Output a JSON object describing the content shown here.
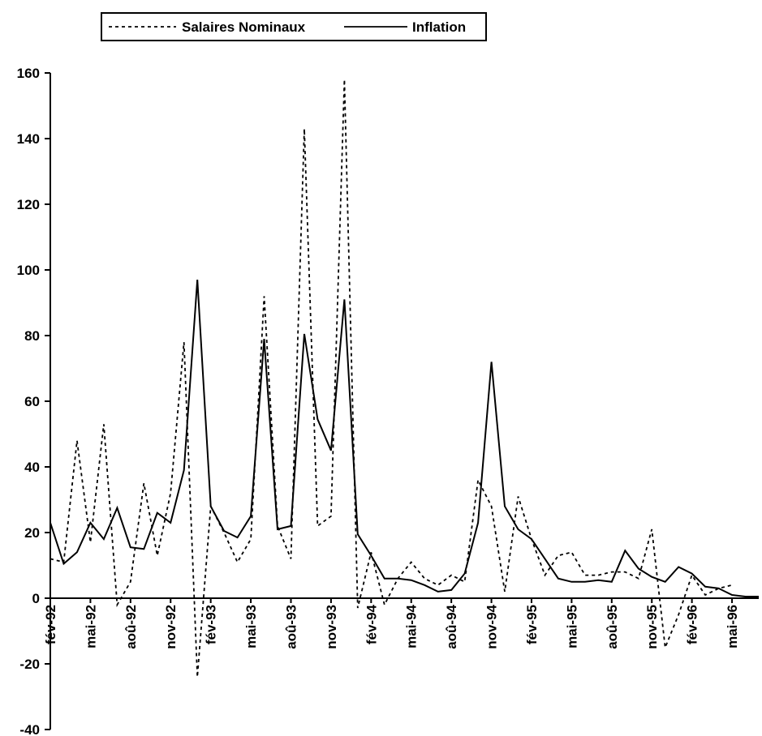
{
  "chart_data": {
    "type": "line",
    "title": "",
    "xlabel": "",
    "ylabel": "",
    "ylim": [
      -40,
      160
    ],
    "y_ticks": [
      -40,
      -20,
      0,
      20,
      40,
      60,
      80,
      100,
      120,
      140,
      160
    ],
    "grid": false,
    "legend_position": "top",
    "x_tick_labels": [
      "fév-92",
      "mai-92",
      "aoû-92",
      "nov-92",
      "fév-93",
      "mai-93",
      "aoû-93",
      "nov-93",
      "fév-94",
      "mai-94",
      "aoû-94",
      "nov-94",
      "fév-95",
      "mai-95",
      "aoû-95",
      "nov-95",
      "fév-96",
      "mai-96"
    ],
    "x_tick_step": 3,
    "series": [
      {
        "name": "Salaires Nominaux",
        "style": "dotted",
        "color": "#000000",
        "values": [
          12,
          11,
          48,
          17,
          53,
          -2,
          5,
          35,
          13,
          32,
          78,
          -24,
          28,
          20,
          11,
          18,
          92,
          22,
          12,
          143,
          22,
          25,
          158,
          -3,
          14,
          -2,
          6,
          11,
          6,
          4,
          7,
          5,
          36,
          28,
          2,
          31,
          18,
          7,
          13,
          14,
          7,
          7,
          8,
          8,
          6,
          21,
          -15,
          -5,
          7,
          1,
          3,
          4
        ]
      },
      {
        "name": "Inflation",
        "style": "solid",
        "color": "#000000",
        "values": [
          23,
          10.5,
          14,
          23,
          18,
          27.5,
          15.5,
          15,
          26,
          23,
          39,
          97,
          28,
          20.5,
          18.5,
          25,
          79,
          21,
          22,
          80.5,
          54.5,
          45,
          91,
          19.5,
          13,
          6,
          6,
          5.5,
          4,
          2,
          2.5,
          7.5,
          23,
          72,
          28,
          21,
          18,
          12,
          6,
          5,
          5,
          5.5,
          5,
          14.5,
          9,
          6.5,
          5,
          9.5,
          7.5,
          3.5,
          3,
          1,
          0.5,
          0.5
        ]
      }
    ]
  },
  "legend": {
    "items": [
      {
        "label": "Salaires Nominaux",
        "style": "dotted"
      },
      {
        "label": "Inflation",
        "style": "solid"
      }
    ]
  }
}
